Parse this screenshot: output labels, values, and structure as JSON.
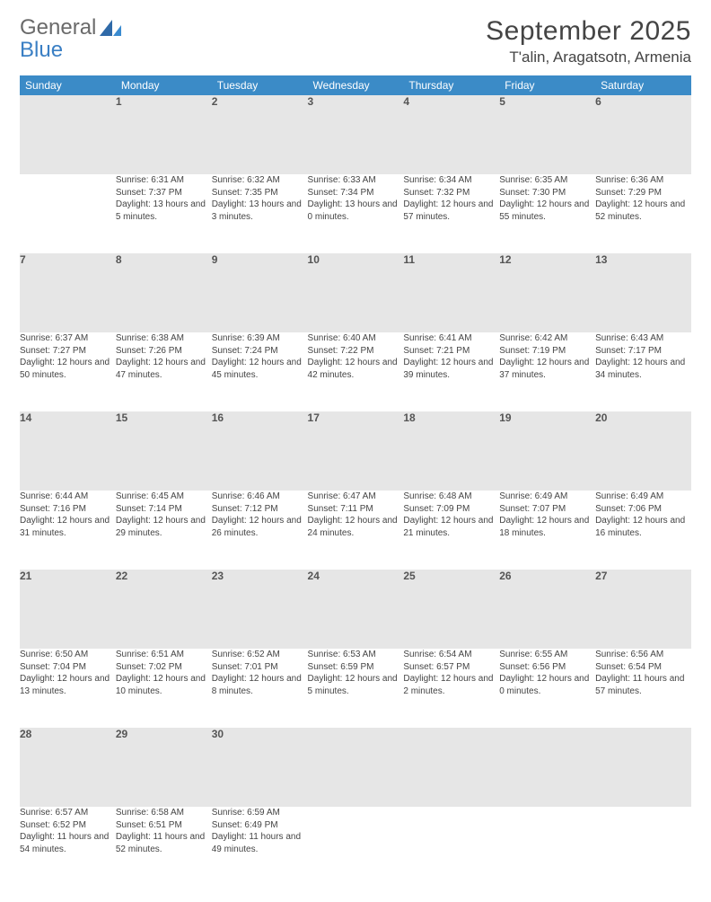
{
  "brand": {
    "line1": "General",
    "line2": "Blue"
  },
  "logo_colors": {
    "gray": "#6a6a6a",
    "blue": "#3a7fc4",
    "header_bg": "#3b8bc7",
    "rule": "#2f5d84",
    "stripe": "#e6e6e6",
    "bg": "#ffffff"
  },
  "title": "September 2025",
  "location": "T'alin, Aragatsotn, Armenia",
  "weekdays": [
    "Sunday",
    "Monday",
    "Tuesday",
    "Wednesday",
    "Thursday",
    "Friday",
    "Saturday"
  ],
  "weeks": [
    {
      "nums": [
        "",
        "1",
        "2",
        "3",
        "4",
        "5",
        "6"
      ],
      "cells": [
        null,
        {
          "sunrise": "Sunrise: 6:31 AM",
          "sunset": "Sunset: 7:37 PM",
          "day": "Daylight: 13 hours and 5 minutes."
        },
        {
          "sunrise": "Sunrise: 6:32 AM",
          "sunset": "Sunset: 7:35 PM",
          "day": "Daylight: 13 hours and 3 minutes."
        },
        {
          "sunrise": "Sunrise: 6:33 AM",
          "sunset": "Sunset: 7:34 PM",
          "day": "Daylight: 13 hours and 0 minutes."
        },
        {
          "sunrise": "Sunrise: 6:34 AM",
          "sunset": "Sunset: 7:32 PM",
          "day": "Daylight: 12 hours and 57 minutes."
        },
        {
          "sunrise": "Sunrise: 6:35 AM",
          "sunset": "Sunset: 7:30 PM",
          "day": "Daylight: 12 hours and 55 minutes."
        },
        {
          "sunrise": "Sunrise: 6:36 AM",
          "sunset": "Sunset: 7:29 PM",
          "day": "Daylight: 12 hours and 52 minutes."
        }
      ]
    },
    {
      "nums": [
        "7",
        "8",
        "9",
        "10",
        "11",
        "12",
        "13"
      ],
      "cells": [
        {
          "sunrise": "Sunrise: 6:37 AM",
          "sunset": "Sunset: 7:27 PM",
          "day": "Daylight: 12 hours and 50 minutes."
        },
        {
          "sunrise": "Sunrise: 6:38 AM",
          "sunset": "Sunset: 7:26 PM",
          "day": "Daylight: 12 hours and 47 minutes."
        },
        {
          "sunrise": "Sunrise: 6:39 AM",
          "sunset": "Sunset: 7:24 PM",
          "day": "Daylight: 12 hours and 45 minutes."
        },
        {
          "sunrise": "Sunrise: 6:40 AM",
          "sunset": "Sunset: 7:22 PM",
          "day": "Daylight: 12 hours and 42 minutes."
        },
        {
          "sunrise": "Sunrise: 6:41 AM",
          "sunset": "Sunset: 7:21 PM",
          "day": "Daylight: 12 hours and 39 minutes."
        },
        {
          "sunrise": "Sunrise: 6:42 AM",
          "sunset": "Sunset: 7:19 PM",
          "day": "Daylight: 12 hours and 37 minutes."
        },
        {
          "sunrise": "Sunrise: 6:43 AM",
          "sunset": "Sunset: 7:17 PM",
          "day": "Daylight: 12 hours and 34 minutes."
        }
      ]
    },
    {
      "nums": [
        "14",
        "15",
        "16",
        "17",
        "18",
        "19",
        "20"
      ],
      "cells": [
        {
          "sunrise": "Sunrise: 6:44 AM",
          "sunset": "Sunset: 7:16 PM",
          "day": "Daylight: 12 hours and 31 minutes."
        },
        {
          "sunrise": "Sunrise: 6:45 AM",
          "sunset": "Sunset: 7:14 PM",
          "day": "Daylight: 12 hours and 29 minutes."
        },
        {
          "sunrise": "Sunrise: 6:46 AM",
          "sunset": "Sunset: 7:12 PM",
          "day": "Daylight: 12 hours and 26 minutes."
        },
        {
          "sunrise": "Sunrise: 6:47 AM",
          "sunset": "Sunset: 7:11 PM",
          "day": "Daylight: 12 hours and 24 minutes."
        },
        {
          "sunrise": "Sunrise: 6:48 AM",
          "sunset": "Sunset: 7:09 PM",
          "day": "Daylight: 12 hours and 21 minutes."
        },
        {
          "sunrise": "Sunrise: 6:49 AM",
          "sunset": "Sunset: 7:07 PM",
          "day": "Daylight: 12 hours and 18 minutes."
        },
        {
          "sunrise": "Sunrise: 6:49 AM",
          "sunset": "Sunset: 7:06 PM",
          "day": "Daylight: 12 hours and 16 minutes."
        }
      ]
    },
    {
      "nums": [
        "21",
        "22",
        "23",
        "24",
        "25",
        "26",
        "27"
      ],
      "cells": [
        {
          "sunrise": "Sunrise: 6:50 AM",
          "sunset": "Sunset: 7:04 PM",
          "day": "Daylight: 12 hours and 13 minutes."
        },
        {
          "sunrise": "Sunrise: 6:51 AM",
          "sunset": "Sunset: 7:02 PM",
          "day": "Daylight: 12 hours and 10 minutes."
        },
        {
          "sunrise": "Sunrise: 6:52 AM",
          "sunset": "Sunset: 7:01 PM",
          "day": "Daylight: 12 hours and 8 minutes."
        },
        {
          "sunrise": "Sunrise: 6:53 AM",
          "sunset": "Sunset: 6:59 PM",
          "day": "Daylight: 12 hours and 5 minutes."
        },
        {
          "sunrise": "Sunrise: 6:54 AM",
          "sunset": "Sunset: 6:57 PM",
          "day": "Daylight: 12 hours and 2 minutes."
        },
        {
          "sunrise": "Sunrise: 6:55 AM",
          "sunset": "Sunset: 6:56 PM",
          "day": "Daylight: 12 hours and 0 minutes."
        },
        {
          "sunrise": "Sunrise: 6:56 AM",
          "sunset": "Sunset: 6:54 PM",
          "day": "Daylight: 11 hours and 57 minutes."
        }
      ]
    },
    {
      "nums": [
        "28",
        "29",
        "30",
        "",
        "",
        "",
        ""
      ],
      "cells": [
        {
          "sunrise": "Sunrise: 6:57 AM",
          "sunset": "Sunset: 6:52 PM",
          "day": "Daylight: 11 hours and 54 minutes."
        },
        {
          "sunrise": "Sunrise: 6:58 AM",
          "sunset": "Sunset: 6:51 PM",
          "day": "Daylight: 11 hours and 52 minutes."
        },
        {
          "sunrise": "Sunrise: 6:59 AM",
          "sunset": "Sunset: 6:49 PM",
          "day": "Daylight: 11 hours and 49 minutes."
        },
        null,
        null,
        null,
        null
      ]
    }
  ]
}
